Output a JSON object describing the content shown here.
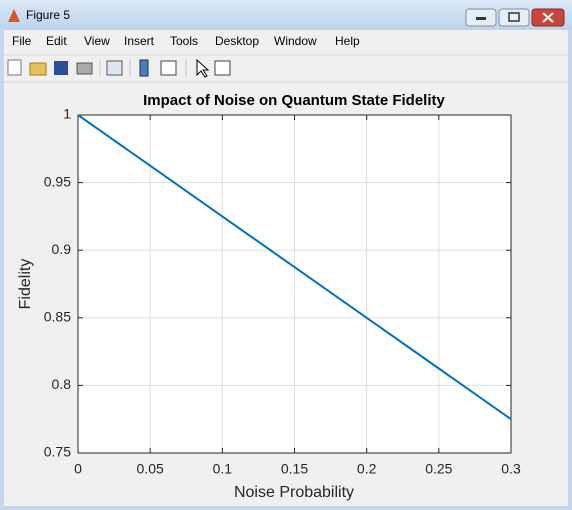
{
  "window": {
    "title": "Figure 5",
    "menu": [
      "File",
      "Edit",
      "View",
      "Insert",
      "Tools",
      "Desktop",
      "Window",
      "Help"
    ]
  },
  "chart_data": {
    "type": "line",
    "title": "Impact of Noise on Quantum State Fidelity",
    "x_label": "Noise Probability",
    "y_label": "Fidelity",
    "x": [
      0,
      0.05,
      0.1,
      0.15,
      0.2,
      0.25,
      0.3
    ],
    "series": [
      {
        "color": "#0072bd",
        "values": [
          1,
          0.9625,
          0.925,
          0.8875,
          0.85,
          0.8125,
          0.775
        ]
      }
    ],
    "xlim": [
      0,
      0.3
    ],
    "ylim": [
      0.75,
      1
    ],
    "xticks": [
      0,
      0.05,
      0.1,
      0.15,
      0.2,
      0.25,
      0.3
    ],
    "yticks": [
      0.75,
      0.8,
      0.85,
      0.9,
      0.95,
      1
    ],
    "grid": true
  }
}
